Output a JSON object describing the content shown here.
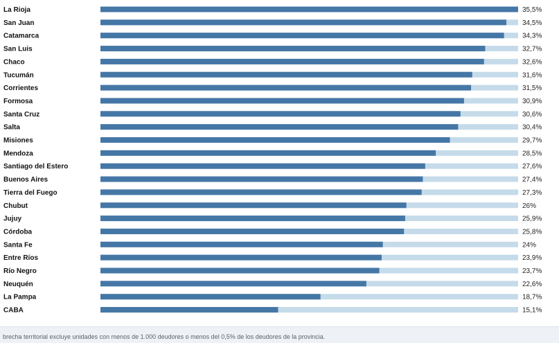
{
  "chart_data": {
    "type": "bar",
    "orientation": "horizontal",
    "categories": [
      "La Rioja",
      "San Juan",
      "Catamarca",
      "San Luis",
      "Chaco",
      "Tucumán",
      "Corrientes",
      "Formosa",
      "Santa Cruz",
      "Salta",
      "Misiones",
      "Mendoza",
      "Santiago del Estero",
      "Buenos Aires",
      "Tierra del Fuego",
      "Chubut",
      "Jujuy",
      "Córdoba",
      "Santa Fe",
      "Entre Ríos",
      "Río Negro",
      "Neuquén",
      "La Pampa",
      "CABA"
    ],
    "values": [
      35.5,
      34.5,
      34.3,
      32.7,
      32.6,
      31.6,
      31.5,
      30.9,
      30.6,
      30.4,
      29.7,
      28.5,
      27.6,
      27.4,
      27.3,
      26,
      25.9,
      25.8,
      24,
      23.9,
      23.7,
      22.6,
      18.7,
      15.1
    ],
    "value_labels": [
      "35,5%",
      "34,5%",
      "34,3%",
      "32,7%",
      "32,6%",
      "31,6%",
      "31,5%",
      "30,9%",
      "30,6%",
      "30,4%",
      "29,7%",
      "28,5%",
      "27,6%",
      "27,4%",
      "27,3%",
      "26%",
      "25,9%",
      "25,8%",
      "24%",
      "23,9%",
      "23,7%",
      "22,6%",
      "18,7%",
      "15,1%"
    ],
    "xlim": [
      0,
      35.5
    ],
    "colors": {
      "bar": "#4577a6",
      "track": "#c5dbea"
    },
    "title": "",
    "xlabel": "",
    "ylabel": ""
  },
  "footer": {
    "note": "brecha territorial excluye unidades con menos de 1.000 deudores o menos del 0,5% de los deudores de la provincia."
  }
}
